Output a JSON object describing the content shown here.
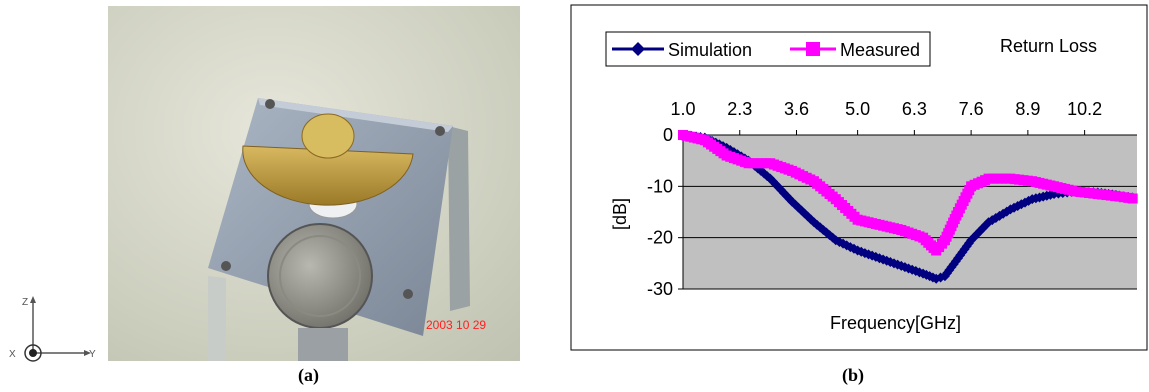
{
  "captions": {
    "a": "(a)",
    "b": "(b)"
  },
  "photo": {
    "date_stamp": "2003 10 29",
    "axis_labels": {
      "z": "Z",
      "x": "X",
      "y": "Y"
    }
  },
  "chart_data": {
    "type": "line",
    "title": "Return Loss",
    "xlabel": "Frequency[GHz]",
    "ylabel": "[dB]",
    "categories": [
      "1.0",
      "2.3",
      "3.6",
      "5.0",
      "6.3",
      "7.6",
      "8.9",
      "10.2"
    ],
    "x_range": [
      1.0,
      11.4
    ],
    "ylim": [
      -30,
      0
    ],
    "yticks": [
      "0",
      "-10",
      "-20",
      "-30"
    ],
    "x_axis_position": "top",
    "grid": "horizontal",
    "legend_position": "top-left",
    "series": [
      {
        "name": "Simulation",
        "color": "#000080",
        "marker": "diamond",
        "x": [
          1.0,
          1.5,
          2.0,
          2.5,
          3.0,
          3.5,
          4.0,
          4.5,
          5.0,
          5.5,
          6.0,
          6.5,
          6.8,
          7.0,
          7.3,
          7.6,
          8.0,
          8.5,
          9.0,
          9.5,
          10.0,
          10.5,
          11.0,
          11.4
        ],
        "y": [
          0,
          -0.5,
          -2.5,
          -5,
          -8.5,
          -13,
          -17,
          -20.5,
          -22.5,
          -24,
          -25.5,
          -27,
          -28,
          -27.5,
          -24,
          -20.5,
          -17,
          -14.5,
          -12.5,
          -11.5,
          -11,
          -11.2,
          -11.8,
          -12.3
        ]
      },
      {
        "name": "Measured",
        "color": "#ff00ff",
        "marker": "square",
        "x": [
          1.0,
          1.5,
          2.0,
          2.5,
          3.0,
          3.5,
          4.0,
          4.5,
          5.0,
          5.5,
          6.0,
          6.5,
          6.8,
          7.0,
          7.3,
          7.6,
          8.0,
          8.5,
          9.0,
          9.5,
          10.0,
          10.5,
          11.0,
          11.4
        ],
        "y": [
          0,
          -1,
          -4,
          -5.5,
          -5.5,
          -7,
          -9,
          -12.5,
          -16.5,
          -17.5,
          -18.5,
          -20,
          -22.5,
          -20.5,
          -15,
          -10,
          -8.5,
          -8.5,
          -9,
          -10,
          -11,
          -11.5,
          -12,
          -12.5
        ]
      }
    ]
  }
}
